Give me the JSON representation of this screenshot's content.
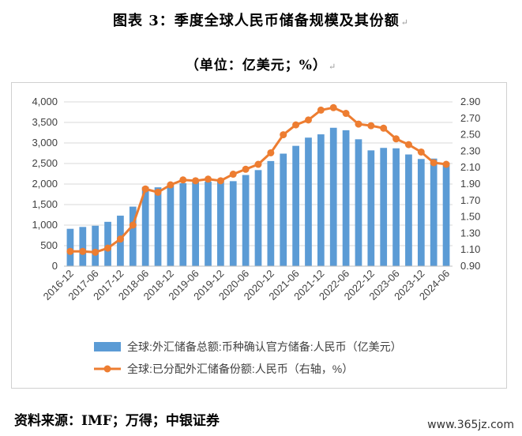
{
  "title": "图表 3：季度全球人民币储备规模及其份额",
  "subtitle": "（单位：亿美元；%）",
  "source": "资料来源：IMF；万得；中银证券",
  "watermark": "www.365jz.com",
  "chart_data": {
    "type": "bar",
    "categories": [
      "2016-12",
      "2017-03",
      "2017-06",
      "2017-09",
      "2017-12",
      "2018-03",
      "2018-06",
      "2018-09",
      "2018-12",
      "2019-03",
      "2019-06",
      "2019-09",
      "2019-12",
      "2020-03",
      "2020-06",
      "2020-09",
      "2020-12",
      "2021-03",
      "2021-06",
      "2021-09",
      "2021-12",
      "2022-03",
      "2022-06",
      "2022-09",
      "2022-12",
      "2023-03",
      "2023-06",
      "2023-09",
      "2023-12",
      "2024-03",
      "2024-06"
    ],
    "x_tick_labels": [
      "2016-12",
      "2017-06",
      "2017-12",
      "2018-06",
      "2018-12",
      "2019-06",
      "2019-12",
      "2020-06",
      "2020-12",
      "2021-06",
      "2021-12",
      "2022-06",
      "2022-12",
      "2023-06",
      "2023-12",
      "2024-06"
    ],
    "series": [
      {
        "name": "全球:外汇储备总额:币种确认官方储备:人民币（亿美元）",
        "type": "bar",
        "axis": "left",
        "color": "#5b9bd5",
        "values": [
          910,
          955,
          985,
          1080,
          1230,
          1450,
          1930,
          1920,
          1960,
          2020,
          2050,
          2060,
          2120,
          2070,
          2220,
          2340,
          2560,
          2740,
          2930,
          3130,
          3210,
          3370,
          3310,
          3090,
          2820,
          2880,
          2870,
          2720,
          2610,
          2620,
          2520
        ]
      },
      {
        "name": "全球:已分配外汇储备份额:人民币（右轴，%）",
        "type": "line",
        "axis": "right",
        "color": "#ed7d31",
        "values": [
          1.08,
          1.08,
          1.07,
          1.12,
          1.23,
          1.4,
          1.84,
          1.8,
          1.89,
          1.95,
          1.94,
          1.96,
          1.94,
          2.02,
          2.08,
          2.14,
          2.28,
          2.5,
          2.62,
          2.68,
          2.8,
          2.83,
          2.76,
          2.63,
          2.61,
          2.58,
          2.45,
          2.38,
          2.29,
          2.16,
          2.14
        ]
      }
    ],
    "y_left": {
      "lim": [
        0,
        4000
      ],
      "ticks": [
        "0",
        "500",
        "1,000",
        "1,500",
        "2,000",
        "2,500",
        "3,000",
        "3,500",
        "4,000"
      ]
    },
    "y_right": {
      "lim": [
        0.9,
        2.9
      ],
      "ticks": [
        "0.90",
        "1.10",
        "1.30",
        "1.50",
        "1.70",
        "1.90",
        "2.10",
        "2.30",
        "2.50",
        "2.70",
        "2.90"
      ]
    },
    "grid": true,
    "legend_position": "bottom"
  }
}
